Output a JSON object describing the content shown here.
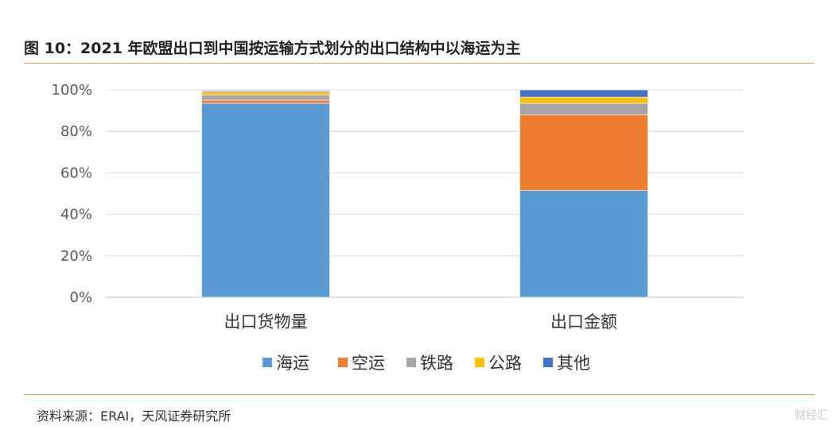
{
  "header": {
    "title": "图 10：2021 年欧盟出口到中国按运输方式划分的出口结构中以海运为主"
  },
  "footer": {
    "source": "资料来源：ERAI，天风证券研究所",
    "watermark": "财经汇"
  },
  "chart_data": {
    "type": "bar",
    "stacked": true,
    "percent_axis": true,
    "categories": [
      "出口货物量",
      "出口金额"
    ],
    "series": [
      {
        "name": "海运",
        "color": "#5b9bd5",
        "values": [
          93.5,
          51.5
        ]
      },
      {
        "name": "空运",
        "color": "#ed7d31",
        "values": [
          1.5,
          36.5
        ]
      },
      {
        "name": "铁路",
        "color": "#a5a5a5",
        "values": [
          2.5,
          5.5
        ]
      },
      {
        "name": "公路",
        "color": "#ffc000",
        "values": [
          1.5,
          3.0
        ]
      },
      {
        "name": "其他",
        "color": "#4472c4",
        "values": [
          0.5,
          3.5
        ]
      }
    ],
    "ylim": [
      0,
      100
    ],
    "yticks": [
      "0%",
      "20%",
      "40%",
      "60%",
      "80%",
      "100%"
    ],
    "grid": true,
    "legend_position": "bottom"
  }
}
